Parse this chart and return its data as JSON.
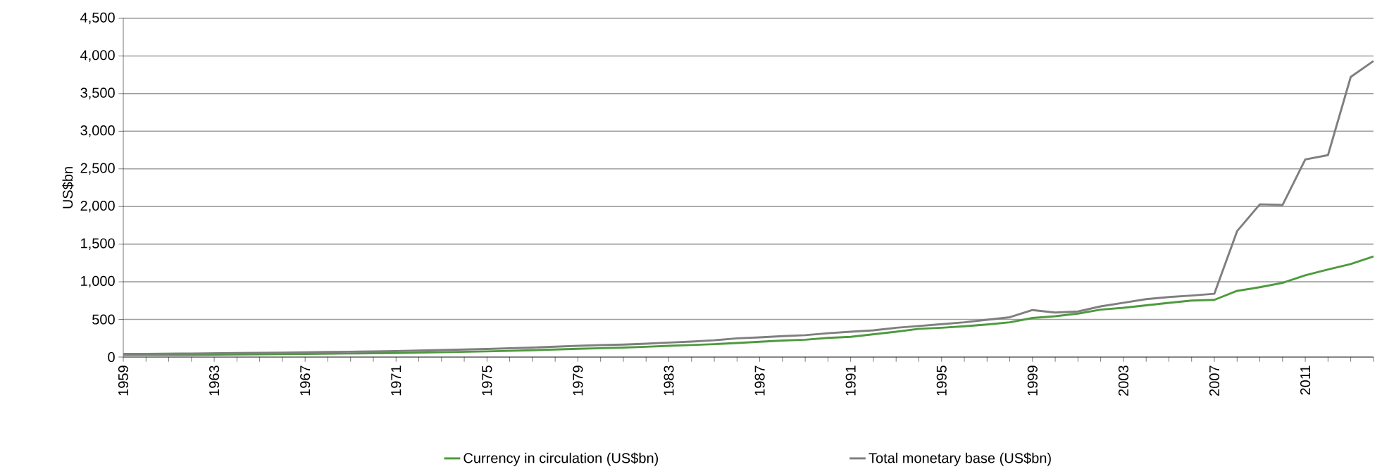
{
  "chart_data": {
    "type": "line",
    "ylabel": "US$bn",
    "x": [
      1959,
      1960,
      1961,
      1962,
      1963,
      1964,
      1965,
      1966,
      1967,
      1968,
      1969,
      1970,
      1971,
      1972,
      1973,
      1974,
      1975,
      1976,
      1977,
      1978,
      1979,
      1980,
      1981,
      1982,
      1983,
      1984,
      1985,
      1986,
      1987,
      1988,
      1989,
      1990,
      1991,
      1992,
      1993,
      1994,
      1995,
      1996,
      1997,
      1998,
      1999,
      2000,
      2001,
      2002,
      2003,
      2004,
      2005,
      2006,
      2007,
      2008,
      2009,
      2010,
      2011,
      2012,
      2013,
      2014
    ],
    "series": [
      {
        "name": "Currency in circulation (US$bn)",
        "color": "#4e9a3e",
        "values": [
          29,
          29,
          30,
          31,
          33,
          35,
          37,
          39,
          42,
          45,
          48,
          51,
          54,
          59,
          64,
          70,
          76,
          83,
          91,
          100,
          109,
          118,
          126,
          137,
          150,
          160,
          172,
          187,
          203,
          220,
          230,
          255,
          269,
          303,
          337,
          375,
          389,
          409,
          433,
          462,
          519,
          543,
          577,
          630,
          654,
          688,
          721,
          750,
          760,
          880,
          928,
          986,
          1087,
          1163,
          1236,
          1337
        ]
      },
      {
        "name": "Total monetary base (US$bn)",
        "color": "#7f7f7f",
        "values": [
          43,
          43,
          45,
          47,
          50,
          53,
          56,
          59,
          63,
          67,
          71,
          75,
          80,
          86,
          93,
          101,
          108,
          117,
          127,
          138,
          150,
          159,
          166,
          178,
          193,
          205,
          223,
          249,
          262,
          279,
          291,
          317,
          337,
          356,
          389,
          413,
          438,
          462,
          495,
          529,
          625,
          591,
          606,
          673,
          721,
          769,
          798,
          817,
          841,
          1673,
          2029,
          2020,
          2625,
          2683,
          3721,
          3933
        ]
      }
    ],
    "xlim": [
      1959,
      2014
    ],
    "xticks": [
      1959,
      {
        "value": 1960,
        "label": null
      },
      {
        "value": 1961,
        "label": null
      },
      {
        "value": 1962,
        "label": null
      },
      1963,
      {
        "value": 1964,
        "label": null
      },
      {
        "value": 1965,
        "label": null
      },
      {
        "value": 1966,
        "label": null
      },
      1967,
      {
        "value": 1968,
        "label": null
      },
      {
        "value": 1969,
        "label": null
      },
      {
        "value": 1970,
        "label": null
      },
      1971,
      {
        "value": 1972,
        "label": null
      },
      {
        "value": 1973,
        "label": null
      },
      {
        "value": 1974,
        "label": null
      },
      1975,
      {
        "value": 1976,
        "label": null
      },
      {
        "value": 1977,
        "label": null
      },
      {
        "value": 1978,
        "label": null
      },
      1979,
      {
        "value": 1980,
        "label": null
      },
      {
        "value": 1981,
        "label": null
      },
      {
        "value": 1982,
        "label": null
      },
      1983,
      {
        "value": 1984,
        "label": null
      },
      {
        "value": 1985,
        "label": null
      },
      {
        "value": 1986,
        "label": null
      },
      1987,
      {
        "value": 1988,
        "label": null
      },
      {
        "value": 1989,
        "label": null
      },
      {
        "value": 1990,
        "label": null
      },
      1991,
      {
        "value": 1992,
        "label": null
      },
      {
        "value": 1993,
        "label": null
      },
      {
        "value": 1994,
        "label": null
      },
      1995,
      {
        "value": 1996,
        "label": null
      },
      {
        "value": 1997,
        "label": null
      },
      {
        "value": 1998,
        "label": null
      },
      1999,
      {
        "value": 2000,
        "label": null
      },
      {
        "value": 2001,
        "label": null
      },
      {
        "value": 2002,
        "label": null
      },
      2003,
      {
        "value": 2004,
        "label": null
      },
      {
        "value": 2005,
        "label": null
      },
      {
        "value": 2006,
        "label": null
      },
      2007,
      {
        "value": 2008,
        "label": null
      },
      {
        "value": 2009,
        "label": null
      },
      {
        "value": 2010,
        "label": null
      },
      2011,
      {
        "value": 2012,
        "label": null
      },
      {
        "value": 2013,
        "label": null
      },
      {
        "value": 2014,
        "label": null
      }
    ],
    "ylim": [
      0,
      4500
    ],
    "yticks": [
      0,
      500,
      {
        "value": 1000,
        "label": "1,000"
      },
      {
        "value": 1500,
        "label": "1,500"
      },
      {
        "value": 2000,
        "label": "2,000"
      },
      {
        "value": 2500,
        "label": "2,500"
      },
      {
        "value": 3000,
        "label": "3,000"
      },
      {
        "value": 3500,
        "label": "3,500"
      },
      {
        "value": 4000,
        "label": "4,000"
      },
      {
        "value": 4500,
        "label": "4,500"
      }
    ],
    "grid": "y",
    "legend": "bottom",
    "marker": "none",
    "line_style": "solid"
  }
}
